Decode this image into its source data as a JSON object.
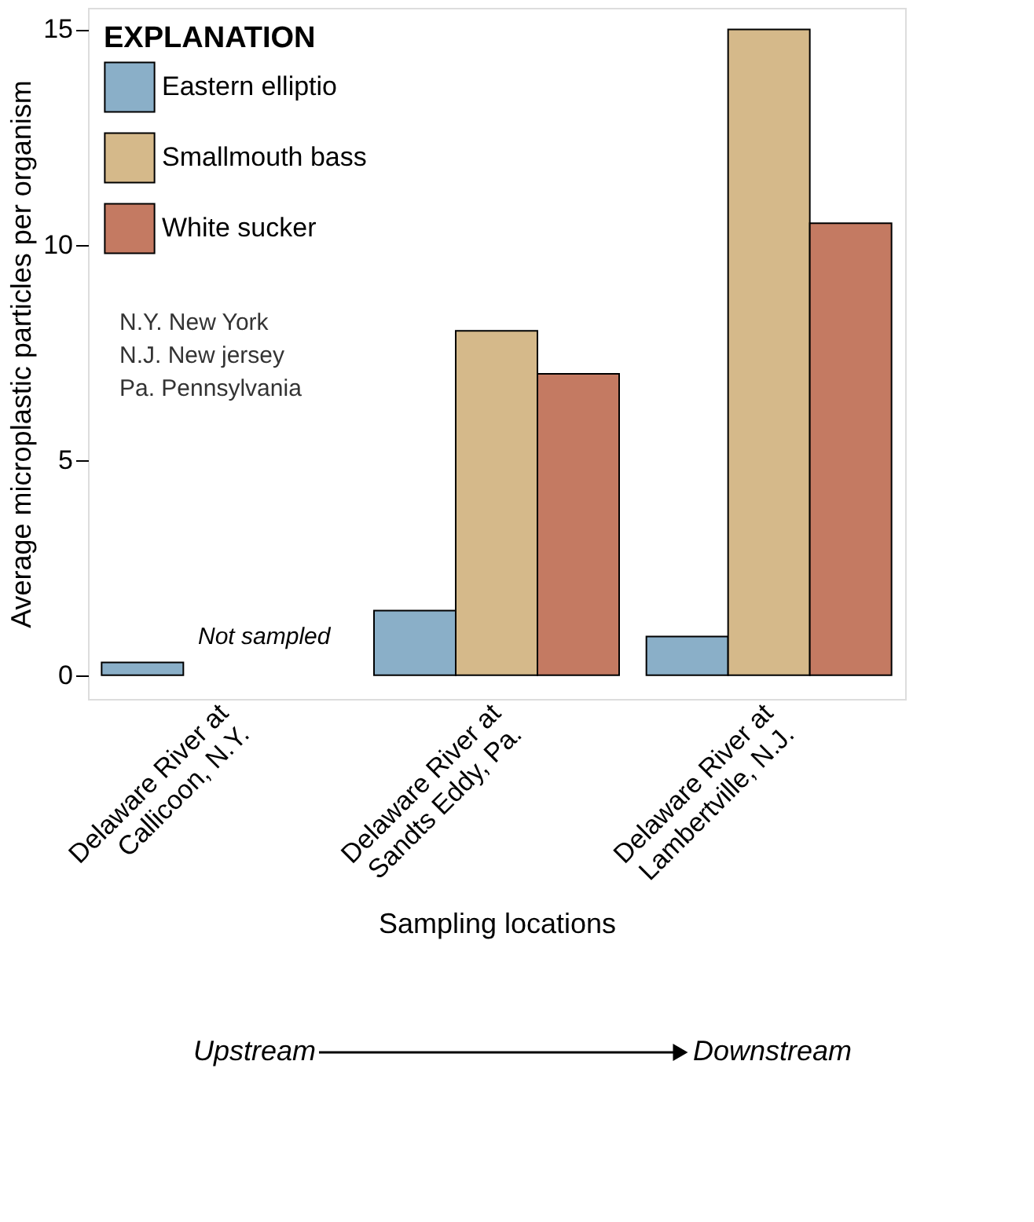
{
  "chart_data": {
    "type": "bar",
    "categories": [
      "Delaware River at\nCallicoon, N.Y.",
      "Delaware River at\nSandts Eddy, Pa.",
      "Delaware River at\nLambertville, N.J."
    ],
    "series": [
      {
        "name": "Eastern elliptio",
        "color": "#8aafc8",
        "values": [
          0.3,
          1.5,
          0.9
        ]
      },
      {
        "name": "Smallmouth bass",
        "color": "#d5b98a",
        "values": [
          null,
          8,
          15
        ]
      },
      {
        "name": "White sucker",
        "color": "#c47a62",
        "values": [
          null,
          7,
          10.5
        ]
      }
    ],
    "xlabel": "Sampling locations",
    "ylabel": "Average microplastic particles per organism",
    "legend_title": "EXPLANATION",
    "legend": "top left",
    "ylim": [
      -0.55,
      15.5
    ],
    "yticks": [
      0,
      5,
      10,
      15
    ],
    "grid": false,
    "annotations": [
      "N.Y. New York",
      "N.J. New jersey",
      "Pa. Pennsylvania",
      "Not sampled",
      "Upstream",
      "Downstream"
    ]
  }
}
